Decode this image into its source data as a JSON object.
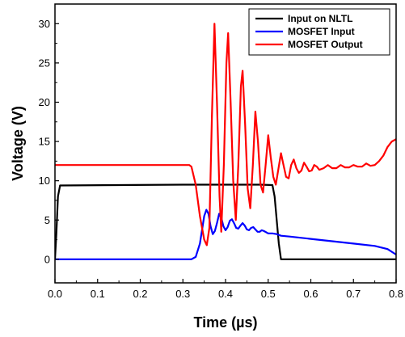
{
  "chart_data": {
    "type": "line",
    "xlabel": "Time (µs)",
    "ylabel": "Voltage (V)",
    "xlim": [
      0.0,
      0.8
    ],
    "ylim": [
      -3,
      32.5
    ],
    "x_ticks": [
      "0.0",
      "0.1",
      "0.2",
      "0.3",
      "0.4",
      "0.5",
      "0.6",
      "0.7",
      "0.8"
    ],
    "y_ticks": [
      "0",
      "5",
      "10",
      "15",
      "20",
      "25",
      "30"
    ],
    "grid": false,
    "legend_position": "top-right",
    "series": [
      {
        "name": "Input on NLTL",
        "color": "#000000",
        "points": [
          [
            0.0,
            0
          ],
          [
            0.003,
            3
          ],
          [
            0.007,
            8
          ],
          [
            0.012,
            9.4
          ],
          [
            0.3,
            9.5
          ],
          [
            0.48,
            9.5
          ],
          [
            0.51,
            9.45
          ],
          [
            0.515,
            8
          ],
          [
            0.52,
            5
          ],
          [
            0.525,
            2
          ],
          [
            0.53,
            0
          ],
          [
            0.8,
            0
          ]
        ]
      },
      {
        "name": "MOSFET Input",
        "color": "#0000ff",
        "points": [
          [
            0.0,
            0
          ],
          [
            0.32,
            0
          ],
          [
            0.33,
            0.3
          ],
          [
            0.34,
            2
          ],
          [
            0.35,
            5.5
          ],
          [
            0.355,
            6.3
          ],
          [
            0.36,
            5.8
          ],
          [
            0.365,
            4.2
          ],
          [
            0.37,
            3.2
          ],
          [
            0.375,
            3.6
          ],
          [
            0.38,
            4.6
          ],
          [
            0.385,
            5.8
          ],
          [
            0.39,
            5.3
          ],
          [
            0.395,
            4.2
          ],
          [
            0.4,
            3.7
          ],
          [
            0.405,
            4.1
          ],
          [
            0.41,
            4.9
          ],
          [
            0.415,
            5.1
          ],
          [
            0.42,
            4.6
          ],
          [
            0.425,
            4.0
          ],
          [
            0.43,
            3.9
          ],
          [
            0.435,
            4.3
          ],
          [
            0.44,
            4.6
          ],
          [
            0.445,
            4.3
          ],
          [
            0.45,
            3.8
          ],
          [
            0.455,
            3.7
          ],
          [
            0.46,
            4.0
          ],
          [
            0.465,
            4.1
          ],
          [
            0.47,
            3.8
          ],
          [
            0.475,
            3.5
          ],
          [
            0.48,
            3.5
          ],
          [
            0.485,
            3.7
          ],
          [
            0.49,
            3.6
          ],
          [
            0.5,
            3.3
          ],
          [
            0.51,
            3.3
          ],
          [
            0.52,
            3.2
          ],
          [
            0.53,
            3.0
          ],
          [
            0.55,
            2.9
          ],
          [
            0.6,
            2.6
          ],
          [
            0.65,
            2.3
          ],
          [
            0.7,
            2.0
          ],
          [
            0.75,
            1.7
          ],
          [
            0.78,
            1.3
          ],
          [
            0.8,
            0.6
          ]
        ]
      },
      {
        "name": "MOSFET Output",
        "color": "#ff0000",
        "points": [
          [
            0.0,
            12
          ],
          [
            0.315,
            12
          ],
          [
            0.32,
            11.8
          ],
          [
            0.33,
            9.5
          ],
          [
            0.34,
            5.5
          ],
          [
            0.35,
            2.5
          ],
          [
            0.356,
            1.8
          ],
          [
            0.362,
            4
          ],
          [
            0.368,
            18
          ],
          [
            0.374,
            30
          ],
          [
            0.38,
            20
          ],
          [
            0.386,
            8
          ],
          [
            0.39,
            3.5
          ],
          [
            0.396,
            12
          ],
          [
            0.402,
            25
          ],
          [
            0.406,
            28.8
          ],
          [
            0.412,
            20
          ],
          [
            0.418,
            10
          ],
          [
            0.424,
            5
          ],
          [
            0.43,
            12
          ],
          [
            0.436,
            22
          ],
          [
            0.44,
            24
          ],
          [
            0.446,
            17
          ],
          [
            0.452,
            9
          ],
          [
            0.458,
            6.5
          ],
          [
            0.464,
            12
          ],
          [
            0.47,
            18.8
          ],
          [
            0.476,
            15
          ],
          [
            0.482,
            9.5
          ],
          [
            0.488,
            8.5
          ],
          [
            0.494,
            12
          ],
          [
            0.5,
            15.8
          ],
          [
            0.506,
            13
          ],
          [
            0.512,
            10.5
          ],
          [
            0.518,
            9.5
          ],
          [
            0.524,
            11.5
          ],
          [
            0.53,
            13.5
          ],
          [
            0.536,
            12
          ],
          [
            0.542,
            10.5
          ],
          [
            0.548,
            10.3
          ],
          [
            0.554,
            12
          ],
          [
            0.56,
            12.7
          ],
          [
            0.566,
            11.6
          ],
          [
            0.572,
            11
          ],
          [
            0.578,
            11.3
          ],
          [
            0.584,
            12.3
          ],
          [
            0.59,
            11.8
          ],
          [
            0.596,
            11.2
          ],
          [
            0.602,
            11.3
          ],
          [
            0.608,
            12
          ],
          [
            0.614,
            11.8
          ],
          [
            0.62,
            11.4
          ],
          [
            0.63,
            11.6
          ],
          [
            0.64,
            12
          ],
          [
            0.65,
            11.6
          ],
          [
            0.66,
            11.6
          ],
          [
            0.67,
            12
          ],
          [
            0.68,
            11.7
          ],
          [
            0.69,
            11.7
          ],
          [
            0.7,
            12
          ],
          [
            0.71,
            11.8
          ],
          [
            0.72,
            11.8
          ],
          [
            0.73,
            12.2
          ],
          [
            0.74,
            11.9
          ],
          [
            0.75,
            12
          ],
          [
            0.76,
            12.5
          ],
          [
            0.77,
            13.2
          ],
          [
            0.78,
            14.3
          ],
          [
            0.79,
            15
          ],
          [
            0.8,
            15.3
          ]
        ]
      }
    ]
  }
}
